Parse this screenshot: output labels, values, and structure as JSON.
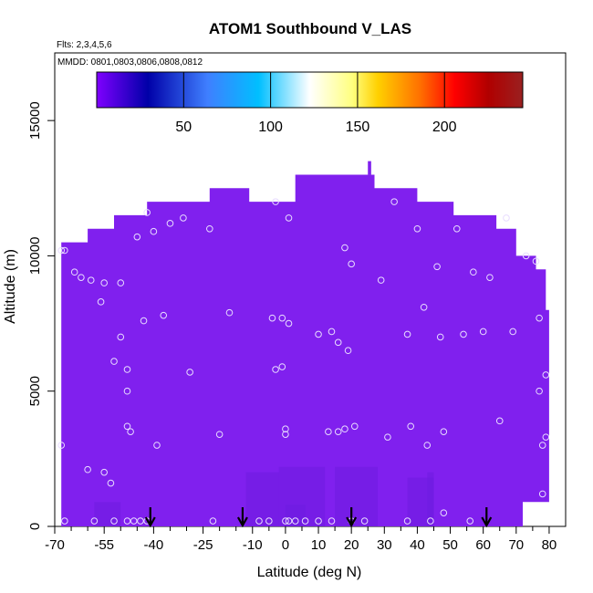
{
  "chart_data": {
    "type": "heatmap",
    "title": "ATOM1 Southbound V_LAS",
    "flights_label": "Flts: 2,3,4,5,6",
    "dates_label": "MMDD: 0801,0803,0806,0808,0812",
    "xlabel": "Latitude (deg N)",
    "ylabel": "Altitude (m)",
    "xlim": [
      -70,
      85
    ],
    "ylim": [
      0,
      17500
    ],
    "x_ticks": [
      -70,
      -55,
      -40,
      -25,
      -10,
      0,
      10,
      20,
      30,
      40,
      50,
      60,
      70,
      80
    ],
    "x_minor_ticks": [
      -65,
      -60,
      -50,
      -45,
      -35,
      -30,
      -20,
      -15,
      -5,
      5,
      15,
      25,
      35,
      45,
      55,
      65,
      75
    ],
    "y_ticks": [
      0,
      5000,
      10000,
      15000
    ],
    "colorbar": {
      "min": 0,
      "max": 245,
      "ticks": [
        50,
        100,
        150,
        200
      ],
      "colors": [
        "#7f00ff",
        "#0000a8",
        "#3f7fff",
        "#00bfff",
        "#ffffff",
        "#ffff7f",
        "#ffd000",
        "#ff6f00",
        "#ff0000",
        "#b00000",
        "#9a2020"
      ],
      "stops": [
        0,
        0.12,
        0.26,
        0.38,
        0.5,
        0.6,
        0.66,
        0.76,
        0.84,
        0.92,
        1.0
      ]
    },
    "field_color": "#8020ee",
    "field_dark_color": "#6e1ce0",
    "field_outline": [
      [
        -68,
        0
      ],
      [
        -68,
        10500
      ],
      [
        -60,
        10500
      ],
      [
        -60,
        11000
      ],
      [
        -52,
        11000
      ],
      [
        -52,
        11500
      ],
      [
        -42,
        11500
      ],
      [
        -42,
        12000
      ],
      [
        -23,
        12000
      ],
      [
        -23,
        12500
      ],
      [
        -11,
        12500
      ],
      [
        -11,
        12000
      ],
      [
        3,
        12000
      ],
      [
        3,
        13000
      ],
      [
        27,
        13000
      ],
      [
        27,
        12500
      ],
      [
        40,
        12500
      ],
      [
        40,
        12000
      ],
      [
        51,
        12000
      ],
      [
        51,
        11500
      ],
      [
        64,
        11500
      ],
      [
        64,
        11000
      ],
      [
        70,
        11000
      ],
      [
        70,
        10000
      ],
      [
        76,
        10000
      ],
      [
        76,
        9500
      ],
      [
        79,
        9500
      ],
      [
        79,
        8000
      ],
      [
        80,
        8000
      ],
      [
        80,
        900
      ],
      [
        72,
        900
      ],
      [
        72,
        0
      ]
    ],
    "field_spike": [
      25,
      13000,
      26,
      13500
    ],
    "dark_patches": [
      [
        -58,
        0,
        -50,
        900
      ],
      [
        -12,
        0,
        -2,
        2000
      ],
      [
        -2,
        0,
        12,
        2200
      ],
      [
        15,
        0,
        28,
        2200
      ],
      [
        37,
        0,
        45,
        1800
      ],
      [
        0,
        0,
        6,
        800
      ],
      [
        43,
        0,
        45,
        2000
      ]
    ],
    "samples": [
      [
        -67,
        10200
      ],
      [
        -68,
        10200
      ],
      [
        -64,
        9400
      ],
      [
        -62,
        9200
      ],
      [
        -59,
        9100
      ],
      [
        -55,
        9000
      ],
      [
        -50,
        9000
      ],
      [
        -56,
        8300
      ],
      [
        -50,
        7000
      ],
      [
        -52,
        6100
      ],
      [
        -48,
        5800
      ],
      [
        -48,
        5000
      ],
      [
        -48,
        3700
      ],
      [
        -47,
        3500
      ],
      [
        -45,
        10700
      ],
      [
        -42,
        11600
      ],
      [
        -40,
        10900
      ],
      [
        -35,
        11200
      ],
      [
        -31,
        11400
      ],
      [
        -23,
        11000
      ],
      [
        -3,
        12000
      ],
      [
        1,
        11400
      ],
      [
        20,
        9700
      ],
      [
        18,
        10300
      ],
      [
        29,
        9100
      ],
      [
        33,
        12000
      ],
      [
        37,
        7100
      ],
      [
        40,
        11000
      ],
      [
        42,
        8100
      ],
      [
        46,
        9600
      ],
      [
        47,
        7000
      ],
      [
        52,
        11000
      ],
      [
        54,
        7100
      ],
      [
        57,
        9400
      ],
      [
        60,
        7200
      ],
      [
        62,
        9200
      ],
      [
        67,
        11400
      ],
      [
        69,
        7200
      ],
      [
        73,
        10000
      ],
      [
        76,
        9800
      ],
      [
        77,
        7700
      ],
      [
        79,
        5600
      ],
      [
        77,
        5000
      ],
      [
        79,
        3300
      ],
      [
        78,
        3000
      ],
      [
        78,
        1200
      ],
      [
        65,
        3900
      ],
      [
        -43,
        7600
      ],
      [
        -37,
        7800
      ],
      [
        -29,
        5700
      ],
      [
        -17,
        7900
      ],
      [
        -4,
        7700
      ],
      [
        -3,
        5800
      ],
      [
        -1,
        5900
      ],
      [
        -1,
        7700
      ],
      [
        1,
        7500
      ],
      [
        10,
        7100
      ],
      [
        14,
        7200
      ],
      [
        16,
        6800
      ],
      [
        19,
        6500
      ],
      [
        0,
        3600
      ],
      [
        0,
        3400
      ],
      [
        -39,
        3000
      ],
      [
        -20,
        3400
      ],
      [
        13,
        3500
      ],
      [
        16,
        3500
      ],
      [
        18,
        3600
      ],
      [
        21,
        3700
      ],
      [
        31,
        3300
      ],
      [
        38,
        3700
      ],
      [
        43,
        3000
      ],
      [
        48,
        3500
      ],
      [
        -68,
        3000
      ],
      [
        -60,
        2100
      ],
      [
        -55,
        2000
      ],
      [
        -53,
        1600
      ],
      [
        -67,
        200
      ],
      [
        -58,
        200
      ],
      [
        -52,
        200
      ],
      [
        -48,
        200
      ],
      [
        -46,
        200
      ],
      [
        -44,
        200
      ],
      [
        -42,
        200
      ],
      [
        -22,
        200
      ],
      [
        -8,
        200
      ],
      [
        -5,
        200
      ],
      [
        0,
        200
      ],
      [
        1,
        200
      ],
      [
        3,
        200
      ],
      [
        6,
        200
      ],
      [
        10,
        200
      ],
      [
        14,
        200
      ],
      [
        20,
        200
      ],
      [
        24,
        200
      ],
      [
        37,
        200
      ],
      [
        44,
        200
      ],
      [
        48,
        500
      ],
      [
        56,
        200
      ]
    ],
    "arrows_x": [
      -41,
      -13,
      20,
      61
    ]
  }
}
